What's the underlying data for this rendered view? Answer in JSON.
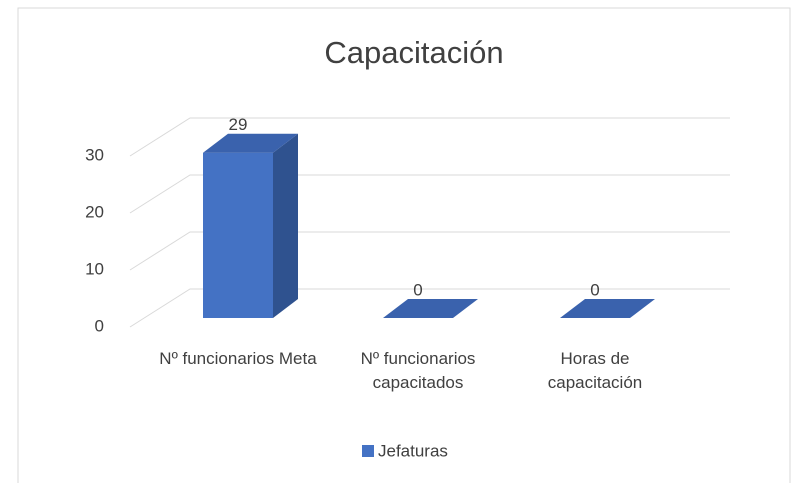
{
  "chart_data": {
    "type": "bar3d",
    "title": "Capacitación",
    "categories": [
      "Nº funcionarios Meta",
      "Nº funcionarios capacitados",
      "Horas de capacitación"
    ],
    "series": [
      {
        "name": "Jefaturas",
        "color": "#4472c4",
        "values": [
          29,
          0,
          0
        ]
      }
    ],
    "ylim": [
      0,
      30
    ],
    "yticks": [
      0,
      10,
      20,
      30
    ],
    "grid": true,
    "legend": "bottom"
  }
}
